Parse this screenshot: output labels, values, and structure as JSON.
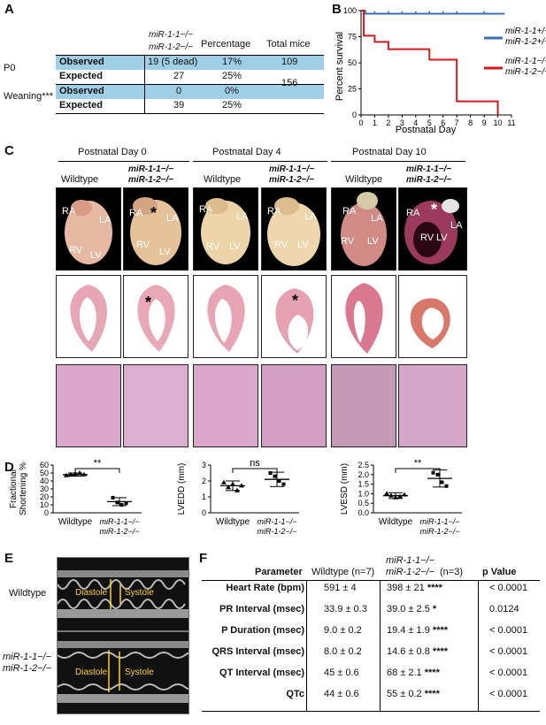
{
  "panels": {
    "a": "A",
    "b": "B",
    "c": "C",
    "d": "D",
    "e": "E",
    "f": "F"
  },
  "panel_a": {
    "genotype_line1": "miR-1-1−/−",
    "genotype_line2": "miR-1-2−/−",
    "col_percentage": "Percentage",
    "col_total": "Total mice",
    "groups": [
      {
        "label": "P0",
        "total": "109",
        "rows": [
          {
            "name": "Observed",
            "count": "19 (5 dead)",
            "pct": "17%"
          },
          {
            "name": "Expected",
            "count": "27",
            "pct": "25%"
          }
        ]
      },
      {
        "label": "Weaning***",
        "total": "156",
        "rows": [
          {
            "name": "Observed",
            "count": "0",
            "pct": "0%"
          },
          {
            "name": "Expected",
            "count": "39",
            "pct": "25%"
          }
        ]
      }
    ]
  },
  "panel_b": {
    "chart_data": {
      "type": "line",
      "xlabel": "Postnatal Day",
      "ylabel": "Percent survival",
      "xlim": [
        0,
        11
      ],
      "ylim": [
        0,
        100
      ],
      "xticks": [
        0,
        1,
        2,
        3,
        4,
        5,
        6,
        7,
        8,
        9,
        10,
        11
      ],
      "yticks": [
        0,
        25,
        50,
        75,
        100
      ],
      "series": [
        {
          "name_line1": "miR-1-1+/−",
          "name_line2": "miR-1-2+/−",
          "color": "#3b6fb6",
          "steps": [
            [
              0,
              100
            ],
            [
              0.3,
              97
            ],
            [
              10.5,
              97
            ]
          ]
        },
        {
          "name_line1": "miR-1-1−/−",
          "name_line2": "miR-1-2−/−",
          "color": "#d01c1c",
          "steps": [
            [
              0,
              100
            ],
            [
              0.2,
              76
            ],
            [
              1,
              70
            ],
            [
              2,
              63
            ],
            [
              5,
              53
            ],
            [
              7,
              13
            ],
            [
              10,
              0
            ]
          ]
        }
      ]
    }
  },
  "panel_c": {
    "day_headers": [
      "Postnatal Day 0",
      "Postnatal Day 4",
      "Postnatal Day 10"
    ],
    "wildtype": "Wildtype",
    "ko_line1": "miR-1-1−/−",
    "ko_line2": "miR-1-2−/−",
    "chamber_labels": {
      "ra": "RA",
      "la": "LA",
      "rv": "RV",
      "lv": "LV"
    },
    "asterisk": "*"
  },
  "panel_d": {
    "chart_data": [
      {
        "type": "scatter",
        "ylabel": "Fractional Shortening %",
        "ylim": [
          0,
          60
        ],
        "yticks": [
          0,
          10,
          20,
          30,
          40,
          50,
          60
        ],
        "categories": [
          "Wildtype",
          "miR-1-1−/− miR-1-2−/−"
        ],
        "groups": [
          {
            "mean": 48,
            "sd": 2,
            "points": [
              47,
              48,
              49,
              50,
              48
            ]
          },
          {
            "mean": 14,
            "sd": 5,
            "points": [
              19,
              13,
              10,
              12
            ]
          }
        ],
        "sig": "**"
      },
      {
        "type": "scatter",
        "ylabel": "LVEDD (mm)",
        "ylim": [
          0,
          3
        ],
        "yticks": [
          0,
          1,
          2,
          3
        ],
        "categories": [
          "Wildtype",
          "miR-1-1−/− miR-1-2−/−"
        ],
        "groups": [
          {
            "mean": 1.7,
            "sd": 0.3,
            "points": [
              1.9,
              1.6,
              1.8,
              1.4,
              1.7
            ]
          },
          {
            "mean": 2.1,
            "sd": 0.45,
            "points": [
              2.5,
              2.3,
              2.0,
              1.8
            ]
          }
        ],
        "sig": "ns"
      },
      {
        "type": "scatter",
        "ylabel": "LVESD (mm)",
        "ylim": [
          0,
          2.5
        ],
        "yticks": [
          0,
          0.5,
          1.0,
          1.5,
          2.0,
          2.5
        ],
        "categories": [
          "Wildtype",
          "miR-1-1−/− miR-1-2−/−"
        ],
        "groups": [
          {
            "mean": 0.9,
            "sd": 0.15,
            "points": [
              1.0,
              0.9,
              0.8,
              0.85,
              0.95
            ]
          },
          {
            "mean": 1.8,
            "sd": 0.45,
            "points": [
              2.1,
              2.0,
              1.6,
              1.4
            ]
          }
        ],
        "sig": "**"
      }
    ]
  },
  "panel_e": {
    "wildtype": "Wildtype",
    "ko_line1": "miR-1-1−/−",
    "ko_line2": "miR-1-2−/−",
    "diastole": "Diastole",
    "systole": "Systole"
  },
  "panel_f": {
    "head_ko_line1": "miR-1-1−/−",
    "head_ko_line2": "miR-1-2−/−",
    "col_param": "Parameter",
    "col_wt": "Wildtype (n=7)",
    "col_ko": "(n=3)",
    "col_p": "p Value",
    "rows": [
      {
        "param": "Heart Rate (bpm)",
        "wt": "591 ± 4",
        "ko": "398 ± 21",
        "sig": "****",
        "p": "< 0.0001"
      },
      {
        "param": "PR Interval (msec)",
        "wt": "33.9 ± 0.3",
        "ko": "39.0 ± 2.5",
        "sig": "*",
        "p": "0.0124"
      },
      {
        "param": "P Duration (msec)",
        "wt": "9.0 ± 0.2",
        "ko": "19.4 ± 1.9",
        "sig": "****",
        "p": "< 0.0001"
      },
      {
        "param": "QRS Interval (msec)",
        "wt": "8.0 ± 0.2",
        "ko": "14.6 ± 0.8",
        "sig": "****",
        "p": "< 0.0001"
      },
      {
        "param": "QT Interval (msec)",
        "wt": "45 ± 0.6",
        "ko": "68 ± 2.1",
        "sig": "****",
        "p": "< 0.0001"
      },
      {
        "param": "QTc",
        "wt": "44 ± 0.6",
        "ko": "55  ± 0.2",
        "sig": "****",
        "p": "< 0.0001"
      }
    ]
  }
}
